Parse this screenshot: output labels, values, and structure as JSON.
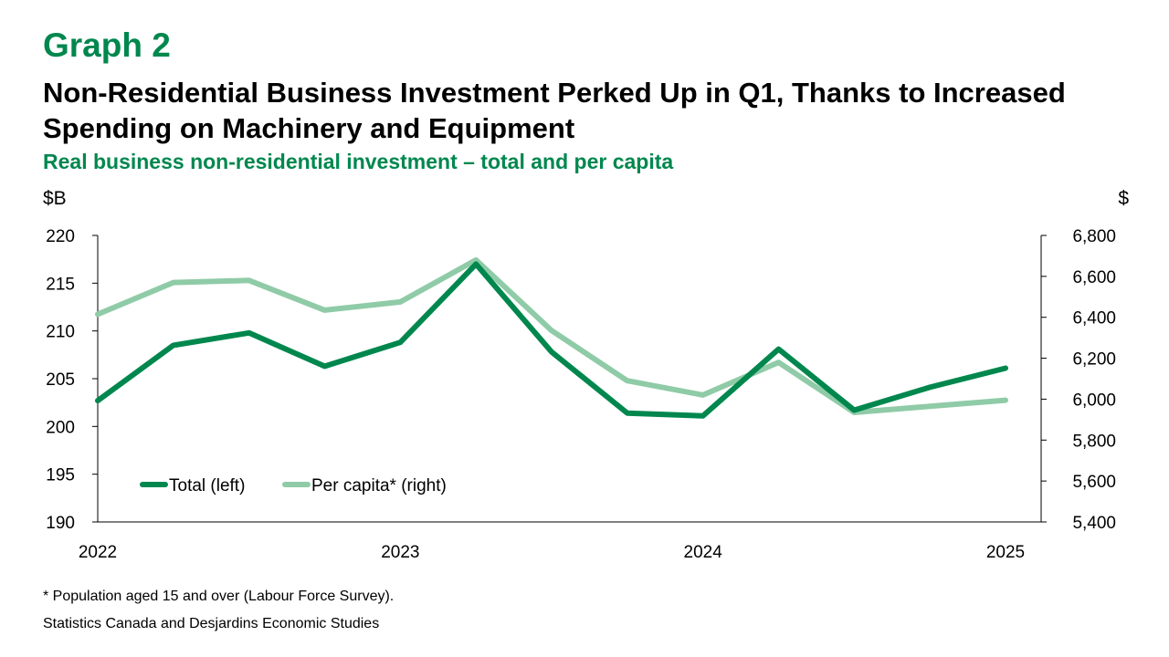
{
  "header": {
    "graph_label": "Graph 2",
    "title": "Non-Residential Business Investment Perked Up in Q1, Thanks to Increased Spending on Machinery and Equipment",
    "subtitle": "Real business non-residential investment – total and per capita"
  },
  "footer": {
    "footnote": "* Population aged 15 and over (Labour Force Survey).",
    "source": "Statistics Canada and Desjardins Economic Studies"
  },
  "chart_data": {
    "type": "line",
    "title": "",
    "xlabel": "",
    "x": [
      "2022 Q1",
      "2022 Q2",
      "2022 Q3",
      "2022 Q4",
      "2023 Q1",
      "2023 Q2",
      "2023 Q3",
      "2023 Q4",
      "2024 Q1",
      "2024 Q2",
      "2024 Q3",
      "2024 Q4",
      "2025 Q1"
    ],
    "x_tick_labels": [
      "2022",
      "2023",
      "2024",
      "2025"
    ],
    "left_axis": {
      "unit": "$B",
      "ylim": [
        190,
        220
      ],
      "ticks": [
        "190",
        "195",
        "200",
        "205",
        "210",
        "215",
        "220"
      ]
    },
    "right_axis": {
      "unit": "$",
      "ylim": [
        5400,
        6800
      ],
      "ticks": [
        "5,400",
        "5,600",
        "5,800",
        "6,000",
        "6,200",
        "6,400",
        "6,600",
        "6,800"
      ]
    },
    "series": [
      {
        "name": "Total (left)",
        "axis": "left",
        "color": "#00874E",
        "values": [
          202.7,
          208.5,
          209.8,
          206.3,
          208.8,
          217.0,
          207.8,
          201.4,
          201.1,
          208.1,
          201.7,
          204.1,
          206.1
        ]
      },
      {
        "name": "Per capita* (right)",
        "axis": "right",
        "color": "#8FCBA7",
        "values": [
          6415,
          6570,
          6580,
          6435,
          6475,
          6680,
          6335,
          6090,
          6020,
          6180,
          5935,
          5965,
          5995
        ]
      }
    ],
    "legend_position": "bottom-left",
    "grid": false
  }
}
